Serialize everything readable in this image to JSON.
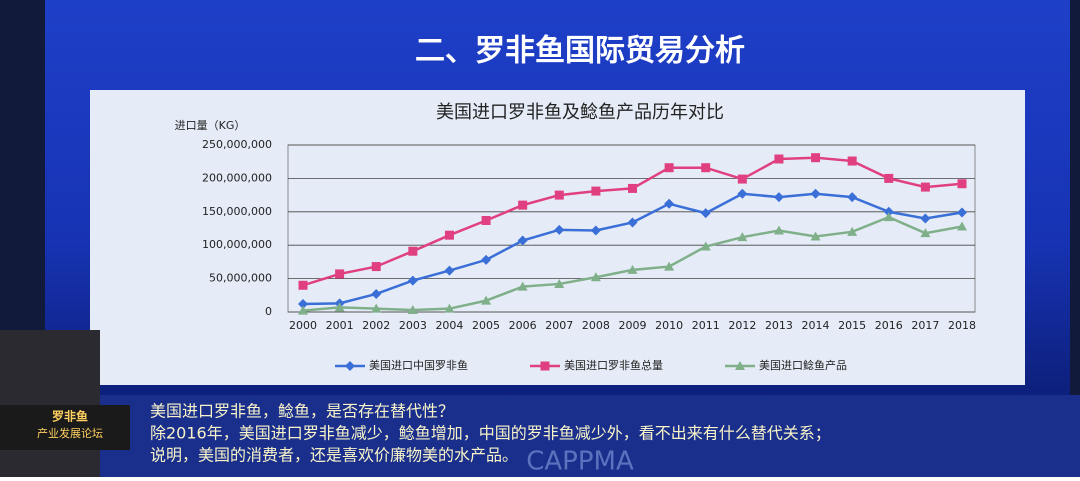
{
  "slide_title": "二、罗非鱼国际贸易分析",
  "chart_data": {
    "type": "line",
    "title": "美国进口罗非鱼及鲶鱼产品历年对比",
    "y_label": "进口量（KG）",
    "categories": [
      "2000",
      "2001",
      "2002",
      "2003",
      "2004",
      "2005",
      "2006",
      "2007",
      "2008",
      "2009",
      "2010",
      "2011",
      "2012",
      "2013",
      "2014",
      "2015",
      "2016",
      "2017",
      "2018"
    ],
    "series": [
      {
        "name": "美国进口中国罗非鱼",
        "color": "#3a6fd8",
        "marker": "diamond",
        "values": [
          12000000,
          13000000,
          27000000,
          47000000,
          62000000,
          78000000,
          107000000,
          123000000,
          122000000,
          134000000,
          162000000,
          148000000,
          177000000,
          172000000,
          177000000,
          172000000,
          150000000,
          140000000,
          149000000
        ]
      },
      {
        "name": "美国进口罗非鱼总量",
        "color": "#e0407f",
        "marker": "square",
        "values": [
          40000000,
          57000000,
          68000000,
          91000000,
          115000000,
          137000000,
          160000000,
          175000000,
          181000000,
          185000000,
          216000000,
          216000000,
          199000000,
          229000000,
          231000000,
          226000000,
          200000000,
          187000000,
          192000000
        ]
      },
      {
        "name": "美国进口鲶鱼产品",
        "color": "#7fb08a",
        "marker": "triangle",
        "values": [
          2000000,
          7000000,
          5000000,
          3000000,
          5000000,
          17000000,
          38000000,
          42000000,
          52000000,
          63000000,
          68000000,
          98000000,
          112000000,
          122000000,
          113000000,
          120000000,
          142000000,
          118000000,
          128000000
        ]
      }
    ],
    "ylim": [
      0,
      250000000
    ],
    "yticks": [
      0,
      {
        "value": 50000000,
        "label": "50,000,000"
      },
      {
        "value": 100000000,
        "label": "100,000,000"
      },
      {
        "value": 150000000,
        "label": "150,000,000"
      },
      {
        "value": 200000000,
        "label": "200,000,000"
      },
      {
        "value": 250000000,
        "label": "250,000,000"
      }
    ],
    "grid": true,
    "legend": "bottom"
  },
  "notes": [
    "美国进口罗非鱼，鲶鱼，是否存在替代性？",
    "除2016年，美国进口罗非鱼减少，鲶鱼增加，中国的罗非鱼减少外，看不出来有什么替代关系；",
    "说明，美国的消费者，还是喜欢价廉物美的水产品。"
  ],
  "watermark": "CAPPMA",
  "logo": [
    "罗非鱼",
    "产业发展论坛"
  ]
}
